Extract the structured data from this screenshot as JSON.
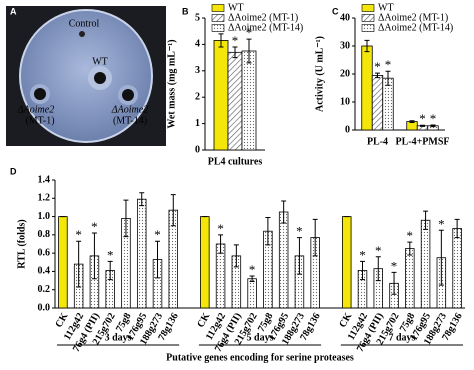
{
  "photo": {
    "panel": "A",
    "labels": [
      "Control",
      "WT",
      "ΔAoime2",
      "(MT-1)",
      "ΔAoime2",
      "(MT-14)"
    ]
  },
  "chart_data": [
    {
      "type": "bar",
      "panel": "B",
      "ylabel": "Wet mass (mg mL⁻¹)",
      "categories": [
        "PL4 cultures"
      ],
      "series": [
        {
          "name": "WT",
          "color": "#f5e60a",
          "values": [
            4.15
          ],
          "errors": [
            0.25
          ],
          "stars": [
            null
          ]
        },
        {
          "name": "ΔAoime2 (MT-1)",
          "color": "hatch",
          "values": [
            3.7
          ],
          "errors": [
            0.2
          ],
          "stars": [
            "*"
          ]
        },
        {
          "name": "ΔAoime2 (MT-14)",
          "color": "dots",
          "values": [
            3.75
          ],
          "errors": [
            0.45
          ],
          "stars": [
            "*"
          ]
        }
      ],
      "ylim": [
        0,
        5
      ],
      "yticks": [
        0,
        1,
        2,
        3,
        4,
        5
      ],
      "legend": "top"
    },
    {
      "type": "bar",
      "panel": "C",
      "ylabel": "Activity (U mL⁻¹)",
      "categories": [
        "PL-4",
        "PL-4+PMSF"
      ],
      "series": [
        {
          "name": "WT",
          "color": "#f5e60a",
          "values": [
            30,
            3
          ],
          "errors": [
            2,
            0.3
          ],
          "stars": [
            null,
            null
          ]
        },
        {
          "name": "ΔAoime2 (MT-1)",
          "color": "hatch",
          "values": [
            19.5,
            1.5
          ],
          "errors": [
            0.8,
            0.2
          ],
          "stars": [
            "*",
            "*"
          ]
        },
        {
          "name": "ΔAoime2 (MT-14)",
          "color": "dots",
          "values": [
            18.5,
            1.5
          ],
          "errors": [
            2.5,
            0.3
          ],
          "stars": [
            "*",
            "*"
          ]
        }
      ],
      "ylim": [
        0,
        40
      ],
      "yticks": [
        0,
        10,
        20,
        30,
        40
      ],
      "legend": "top"
    },
    {
      "type": "grouped_bar",
      "panel": "D",
      "ylabel": "RTL (folds)",
      "xlabel": "Putative genes encoding for serine proteases",
      "ylim": [
        0,
        1.4
      ],
      "yticks": [
        {
          "value": 0,
          "label": "0.0"
        },
        {
          "value": 0.2,
          "label": "0.2"
        },
        {
          "value": 0.4,
          "label": "0.4"
        },
        {
          "value": 0.6,
          "label": "0.6"
        },
        {
          "value": 0.8,
          "label": "0.8"
        },
        {
          "value": 1,
          "label": "1.0"
        },
        {
          "value": 1.2,
          "label": "1.2"
        },
        {
          "value": 1.4,
          "label": "1.4"
        }
      ],
      "groups": [
        {
          "name": "3 days",
          "categories": [
            "CK",
            "112g42",
            "76g4 (PII)",
            "215g702",
            "75g8",
            "176g95",
            "188g273",
            "78g136"
          ],
          "colors": [
            "#f5e60a",
            "dots",
            "dots",
            "dots",
            "dots",
            "dots",
            "dots",
            "dots"
          ],
          "values": [
            1.0,
            0.48,
            0.57,
            0.41,
            0.98,
            1.19,
            0.53,
            1.07
          ],
          "errors": [
            0,
            0.25,
            0.25,
            0.1,
            0.2,
            0.07,
            0.2,
            0.17
          ],
          "stars": [
            null,
            "*",
            "*",
            "*",
            null,
            null,
            "*",
            null
          ]
        },
        {
          "name": "5 days",
          "categories": [
            "CK",
            "112g42",
            "76g4 (PII)",
            "215g702",
            "75g8",
            "176g95",
            "188g273",
            "78g136"
          ],
          "colors": [
            "#f5e60a",
            "dots",
            "dots",
            "dots",
            "dots",
            "dots",
            "dots",
            "dots"
          ],
          "values": [
            1.0,
            0.7,
            0.57,
            0.32,
            0.84,
            1.05,
            0.57,
            0.77
          ],
          "errors": [
            0,
            0.1,
            0.12,
            0.03,
            0.15,
            0.12,
            0.2,
            0.2
          ],
          "stars": [
            null,
            "*",
            null,
            "*",
            null,
            null,
            "*",
            null
          ]
        },
        {
          "name": "7 days",
          "categories": [
            "CK",
            "112g42",
            "76g4 (PII)",
            "215g702",
            "75g8",
            "176g95",
            "188g273",
            "78g136"
          ],
          "colors": [
            "#f5e60a",
            "dots",
            "dots",
            "dots",
            "dots",
            "dots",
            "dots",
            "dots"
          ],
          "values": [
            1.0,
            0.41,
            0.43,
            0.27,
            0.65,
            0.96,
            0.55,
            0.87
          ],
          "errors": [
            0,
            0.1,
            0.13,
            0.12,
            0.07,
            0.1,
            0.3,
            0.1
          ],
          "stars": [
            null,
            "*",
            "*",
            "*",
            "*",
            null,
            "*",
            null
          ]
        }
      ]
    }
  ]
}
